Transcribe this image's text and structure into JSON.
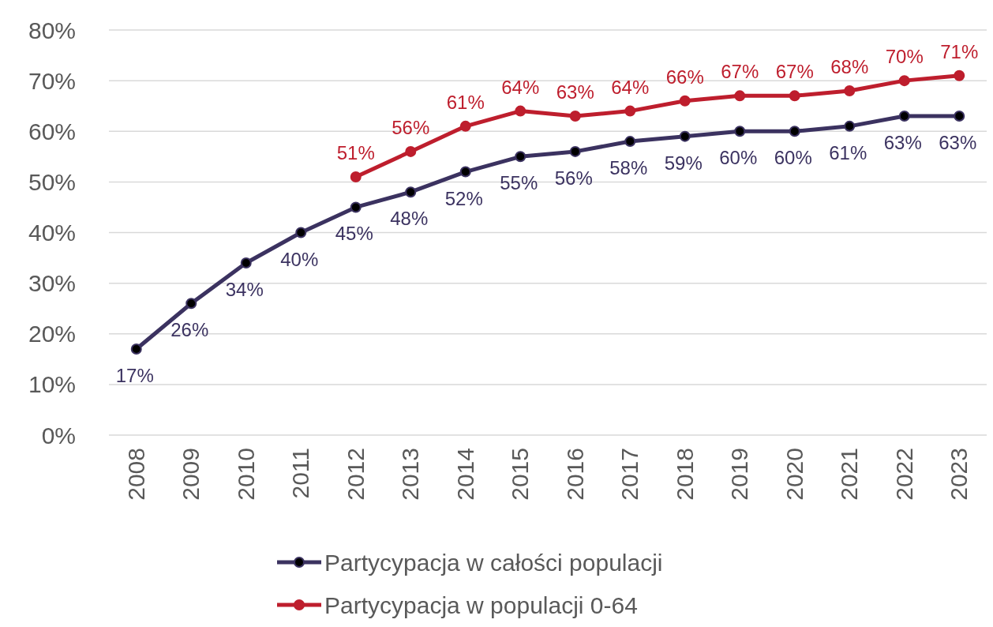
{
  "chart_data": {
    "type": "line",
    "categories": [
      "2008",
      "2009",
      "2010",
      "2011",
      "2012",
      "2013",
      "2014",
      "2015",
      "2016",
      "2017",
      "2018",
      "2019",
      "2020",
      "2021",
      "2022",
      "2023"
    ],
    "series": [
      {
        "name": "Partycypacja w całości populacji",
        "color": "#3b3260",
        "values": [
          17,
          26,
          34,
          40,
          45,
          48,
          52,
          55,
          56,
          58,
          59,
          60,
          60,
          61,
          63,
          63
        ],
        "value_labels": [
          "17%",
          "26%",
          "34%",
          "40%",
          "45%",
          "48%",
          "52%",
          "55%",
          "56%",
          "58%",
          "59%",
          "60%",
          "60%",
          "61%",
          "63%",
          "63%"
        ]
      },
      {
        "name": "Partycypacja w populacji 0-64",
        "color": "#be1e2d",
        "values": [
          null,
          null,
          null,
          null,
          51,
          56,
          61,
          64,
          63,
          64,
          66,
          67,
          67,
          68,
          70,
          71
        ],
        "value_labels": [
          null,
          null,
          null,
          null,
          "51%",
          "56%",
          "61%",
          "64%",
          "63%",
          "64%",
          "66%",
          "67%",
          "67%",
          "68%",
          "70%",
          "71%"
        ]
      }
    ],
    "ylim": [
      0,
      80
    ],
    "yticks": [
      {
        "value": 0,
        "label": "0%"
      },
      {
        "value": 10,
        "label": "10%"
      },
      {
        "value": 20,
        "label": "20%"
      },
      {
        "value": 30,
        "label": "30%"
      },
      {
        "value": 40,
        "label": "40%"
      },
      {
        "value": 50,
        "label": "50%"
      },
      {
        "value": 60,
        "label": "60%"
      },
      {
        "value": 70,
        "label": "70%"
      },
      {
        "value": 80,
        "label": "80%"
      }
    ],
    "grid": "y",
    "legend": "bottom",
    "marker": "circle",
    "line_style": "solid"
  }
}
